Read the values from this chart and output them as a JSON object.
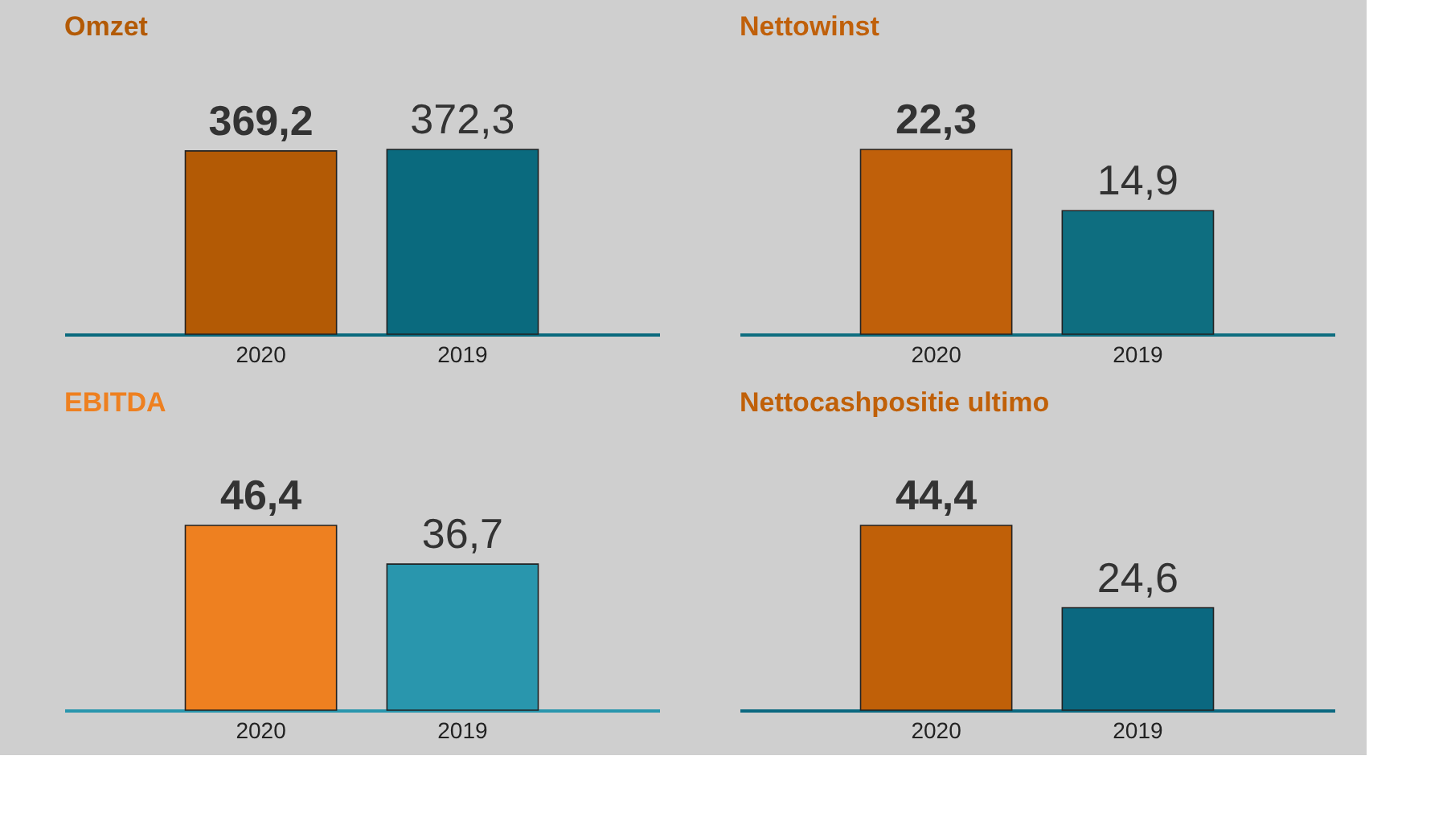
{
  "chart_data": [
    {
      "type": "bar",
      "title": "Omzet",
      "categories": [
        "2020",
        "2019"
      ],
      "values": [
        369.2,
        372.3
      ],
      "colors": [
        "#b35a05",
        "#0a6a7e"
      ],
      "value_labels": [
        "369,2",
        "372,3"
      ],
      "tick_labels": "x"
    },
    {
      "type": "bar",
      "title": "Nettowinst",
      "categories": [
        "2020",
        "2019"
      ],
      "values": [
        22.3,
        14.9
      ],
      "colors": [
        "#c0600a",
        "#0e6e80"
      ],
      "value_labels": [
        "22,3",
        "14,9"
      ],
      "tick_labels": "x"
    },
    {
      "type": "bar",
      "title": "EBITDA",
      "categories": [
        "2020",
        "2019"
      ],
      "values": [
        46.4,
        36.7
      ],
      "colors": [
        "#ee8020",
        "#2996ad"
      ],
      "value_labels": [
        "46,4",
        "36,7"
      ],
      "tick_labels": "x"
    },
    {
      "type": "bar",
      "title": "Nettocashpositie ultimo",
      "categories": [
        "2020",
        "2019"
      ],
      "values": [
        44.4,
        24.6
      ],
      "colors": [
        "#c06008",
        "#0b6880"
      ],
      "value_labels": [
        "44,4",
        "24,6"
      ],
      "tick_labels": "x"
    }
  ]
}
